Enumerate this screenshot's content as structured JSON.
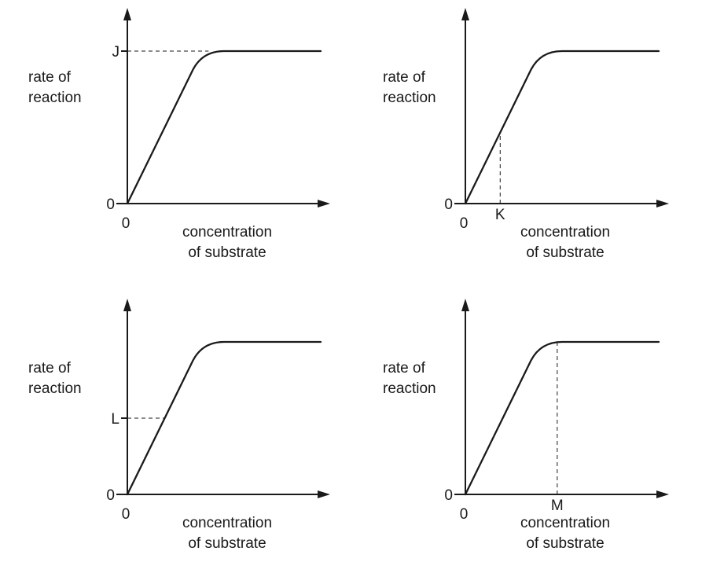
{
  "chart_data": [
    {
      "type": "line",
      "title": "",
      "ylabel": [
        "rate of",
        "reaction"
      ],
      "xlabel": [
        "concentration",
        "of substrate"
      ],
      "x_origin_label": "0",
      "y_origin_label": "0",
      "ylim": [
        0,
        1
      ],
      "xlim": [
        0,
        1
      ],
      "curve": {
        "linear_end_x": 0.34,
        "linear_end_y": 0.88,
        "plateau_start_x": 0.5,
        "plateau_y": 1.0
      },
      "marker": {
        "axis": "y",
        "label": "J",
        "value": 1.0
      }
    },
    {
      "type": "line",
      "title": "",
      "ylabel": [
        "rate of",
        "reaction"
      ],
      "xlabel": [
        "concentration",
        "of substrate"
      ],
      "x_origin_label": "0",
      "y_origin_label": "0",
      "ylim": [
        0,
        1
      ],
      "xlim": [
        0,
        1
      ],
      "curve": {
        "linear_end_x": 0.34,
        "linear_end_y": 0.88,
        "plateau_start_x": 0.5,
        "plateau_y": 1.0
      },
      "marker": {
        "axis": "x",
        "label": "K",
        "value": 0.18
      }
    },
    {
      "type": "line",
      "title": "",
      "ylabel": [
        "rate of",
        "reaction"
      ],
      "xlabel": [
        "concentration",
        "of substrate"
      ],
      "x_origin_label": "0",
      "y_origin_label": "0",
      "ylim": [
        0,
        1
      ],
      "xlim": [
        0,
        1
      ],
      "curve": {
        "linear_end_x": 0.34,
        "linear_end_y": 0.88,
        "plateau_start_x": 0.5,
        "plateau_y": 1.0
      },
      "marker": {
        "axis": "y",
        "label": "L",
        "value": 0.5
      }
    },
    {
      "type": "line",
      "title": "",
      "ylabel": [
        "rate of",
        "reaction"
      ],
      "xlabel": [
        "concentration",
        "of substrate"
      ],
      "x_origin_label": "0",
      "y_origin_label": "0",
      "ylim": [
        0,
        1
      ],
      "xlim": [
        0,
        1
      ],
      "curve": {
        "linear_end_x": 0.34,
        "linear_end_y": 0.88,
        "plateau_start_x": 0.5,
        "plateau_y": 1.0
      },
      "marker": {
        "axis": "x",
        "label": "M",
        "value": 0.475
      }
    }
  ]
}
